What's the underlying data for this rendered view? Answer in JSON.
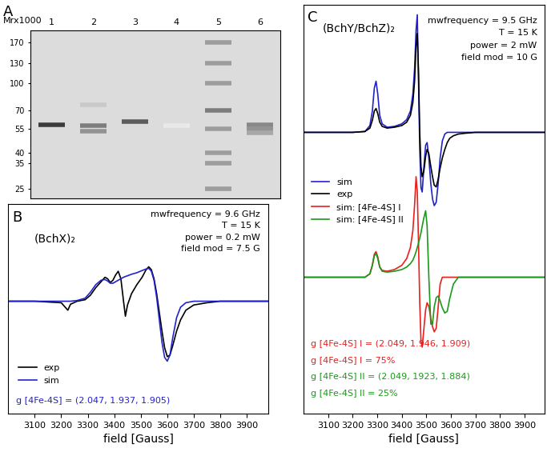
{
  "chart_data": [
    {
      "type": "gel",
      "panel": "A",
      "ylabel": "Mrx1000",
      "categories": [
        "1",
        "2",
        "3",
        "4",
        "5",
        "6"
      ],
      "log": "y",
      "ylim": [
        22,
        200
      ],
      "yticks": [
        170,
        130,
        100,
        70,
        55,
        40,
        35,
        25
      ],
      "bands": [
        {
          "lane": "1",
          "mr": 58,
          "intensity": 0.9
        },
        {
          "lane": "2",
          "mr": 75,
          "intensity": 0.25
        },
        {
          "lane": "2",
          "mr": 57,
          "intensity": 0.6
        },
        {
          "lane": "2",
          "mr": 53,
          "intensity": 0.5
        },
        {
          "lane": "3",
          "mr": 60,
          "intensity": 0.75
        },
        {
          "lane": "4",
          "mr": 57,
          "intensity": 0.1
        },
        {
          "lane": "5",
          "mr": 170,
          "intensity": 0.45
        },
        {
          "lane": "5",
          "mr": 130,
          "intensity": 0.45
        },
        {
          "lane": "5",
          "mr": 100,
          "intensity": 0.45
        },
        {
          "lane": "5",
          "mr": 70,
          "intensity": 0.6
        },
        {
          "lane": "5",
          "mr": 55,
          "intensity": 0.45
        },
        {
          "lane": "5",
          "mr": 40,
          "intensity": 0.45
        },
        {
          "lane": "5",
          "mr": 35,
          "intensity": 0.45
        },
        {
          "lane": "5",
          "mr": 25,
          "intensity": 0.45
        },
        {
          "lane": "6",
          "mr": 58,
          "intensity": 0.55
        },
        {
          "lane": "6",
          "mr": 55,
          "intensity": 0.5
        },
        {
          "lane": "6",
          "mr": 52,
          "intensity": 0.4
        }
      ]
    },
    {
      "type": "line",
      "panel": "B",
      "title": "(BchX)₂",
      "xlabel": "field [Gauss]",
      "x": [
        3000,
        3100,
        3200,
        3215,
        3225,
        3235,
        3260,
        3290,
        3310,
        3330,
        3350,
        3365,
        3375,
        3385,
        3395,
        3405,
        3415,
        3425,
        3435,
        3442,
        3450,
        3465,
        3485,
        3505,
        3520,
        3530,
        3540,
        3550,
        3560,
        3570,
        3580,
        3590,
        3600,
        3610,
        3620,
        3635,
        3650,
        3670,
        3700,
        3750,
        3800,
        3900,
        3980
      ],
      "series": [
        {
          "name": "exp",
          "color": "#000000",
          "values": [
            0,
            0,
            -2,
            -8,
            -12,
            -4,
            0,
            2,
            8,
            18,
            26,
            32,
            30,
            25,
            28,
            35,
            40,
            30,
            0,
            -20,
            -5,
            10,
            22,
            32,
            42,
            46,
            42,
            30,
            10,
            -15,
            -40,
            -62,
            -74,
            -72,
            -60,
            -40,
            -25,
            -12,
            -5,
            -2,
            0,
            0,
            0
          ]
        },
        {
          "name": "sim",
          "color": "#2222cc",
          "values": [
            0,
            0,
            0,
            0,
            0,
            0,
            1,
            4,
            12,
            22,
            28,
            29,
            27,
            24,
            24,
            26,
            28,
            30,
            32,
            33,
            34,
            36,
            38,
            41,
            43,
            44,
            40,
            28,
            5,
            -25,
            -55,
            -75,
            -80,
            -72,
            -50,
            -22,
            -8,
            -2,
            0,
            0,
            0,
            0,
            0
          ]
        }
      ],
      "xlim": [
        3000,
        3980
      ],
      "xticks": [
        3100,
        3200,
        3300,
        3400,
        3500,
        3600,
        3700,
        3800,
        3900
      ],
      "ylim": [
        -150,
        130
      ],
      "tick_labels": "x",
      "legend": "lower left",
      "annotations": [
        {
          "text": "mwfrequency = 9.6 GHz",
          "color": "#000000"
        },
        {
          "text": "T = 15 K",
          "color": "#000000"
        },
        {
          "text": "power = 0.2 mW",
          "color": "#000000"
        },
        {
          "text": "field mod = 7.5 G",
          "color": "#000000"
        },
        {
          "text": "g [4Fe-4S] = (2.047, 1.937, 1.905)",
          "color": "#2222cc"
        }
      ]
    },
    {
      "type": "line",
      "panel": "C",
      "title": "(BchY/BchZ)₂",
      "xlabel": "field [Gauss]",
      "x": [
        3000,
        3100,
        3200,
        3250,
        3270,
        3280,
        3288,
        3295,
        3302,
        3310,
        3320,
        3340,
        3370,
        3400,
        3420,
        3435,
        3445,
        3452,
        3458,
        3463,
        3468,
        3473,
        3478,
        3483,
        3490,
        3497,
        3503,
        3510,
        3518,
        3525,
        3532,
        3540,
        3548,
        3556,
        3565,
        3575,
        3585,
        3595,
        3610,
        3630,
        3660,
        3700,
        3800,
        3980
      ],
      "series": [
        {
          "name": "sim",
          "color": "#2222cc",
          "values": [
            170,
            170,
            170,
            171,
            178,
            195,
            222,
            230,
            215,
            190,
            180,
            176,
            177,
            180,
            185,
            195,
            215,
            245,
            290,
            308,
            230,
            150,
            105,
            100,
            130,
            155,
            158,
            140,
            110,
            92,
            84,
            88,
            110,
            140,
            160,
            168,
            170,
            170,
            170,
            170,
            170,
            170,
            170,
            170
          ]
        },
        {
          "name": "exp",
          "color": "#000000",
          "values": [
            170,
            170,
            170,
            171,
            175,
            184,
            195,
            198,
            192,
            182,
            177,
            175,
            176,
            178,
            182,
            190,
            205,
            230,
            270,
            286,
            240,
            170,
            130,
            118,
            125,
            142,
            150,
            145,
            130,
            118,
            108,
            106,
            115,
            128,
            140,
            150,
            158,
            163,
            166,
            168,
            169,
            170,
            170,
            170
          ]
        },
        {
          "name": "sim: [4Fe-4S] I",
          "color": "#e8201e",
          "values": [
            0,
            0,
            0,
            0,
            4,
            14,
            27,
            30,
            24,
            12,
            8,
            7,
            9,
            14,
            22,
            35,
            55,
            85,
            118,
            100,
            40,
            -30,
            -75,
            -82,
            -60,
            -38,
            -30,
            -34,
            -48,
            -58,
            -64,
            -60,
            -35,
            -8,
            0,
            0,
            0,
            0,
            0,
            0,
            0,
            0,
            0,
            0
          ]
        },
        {
          "name": "sim: [4Fe-4S] II",
          "color": "#1a9a1a",
          "values": [
            0,
            0,
            0,
            0,
            4,
            14,
            25,
            28,
            22,
            12,
            7,
            6,
            7,
            9,
            12,
            16,
            20,
            25,
            30,
            35,
            40,
            46,
            52,
            60,
            70,
            78,
            60,
            0,
            -55,
            -55,
            -35,
            -24,
            -22,
            -28,
            -36,
            -42,
            -40,
            -25,
            -8,
            0,
            0,
            0,
            0,
            0
          ]
        }
      ],
      "xlim": [
        3000,
        3980
      ],
      "xticks": [
        3100,
        3200,
        3300,
        3400,
        3500,
        3600,
        3700,
        3800,
        3900
      ],
      "ylim": [
        -160,
        320
      ],
      "tick_labels": "x",
      "legend": "center left",
      "annotations": [
        {
          "text": "mwfrequency = 9.5 GHz",
          "color": "#000000"
        },
        {
          "text": "T = 15 K",
          "color": "#000000"
        },
        {
          "text": "power = 2 mW",
          "color": "#000000"
        },
        {
          "text": "field mod = 10 G",
          "color": "#000000"
        },
        {
          "text": "g [4Fe-4S] I = (2.049, 1.946, 1.909)",
          "color": "#e8201e"
        },
        {
          "text": "g [4Fe-4S] I = 75%",
          "color": "#e8201e"
        },
        {
          "text": "g [4Fe-4S] II = (2.049, 1923, 1.884)",
          "color": "#1a9a1a"
        },
        {
          "text": "g [4Fe-4S] II = 25%",
          "color": "#1a9a1a"
        }
      ]
    }
  ]
}
